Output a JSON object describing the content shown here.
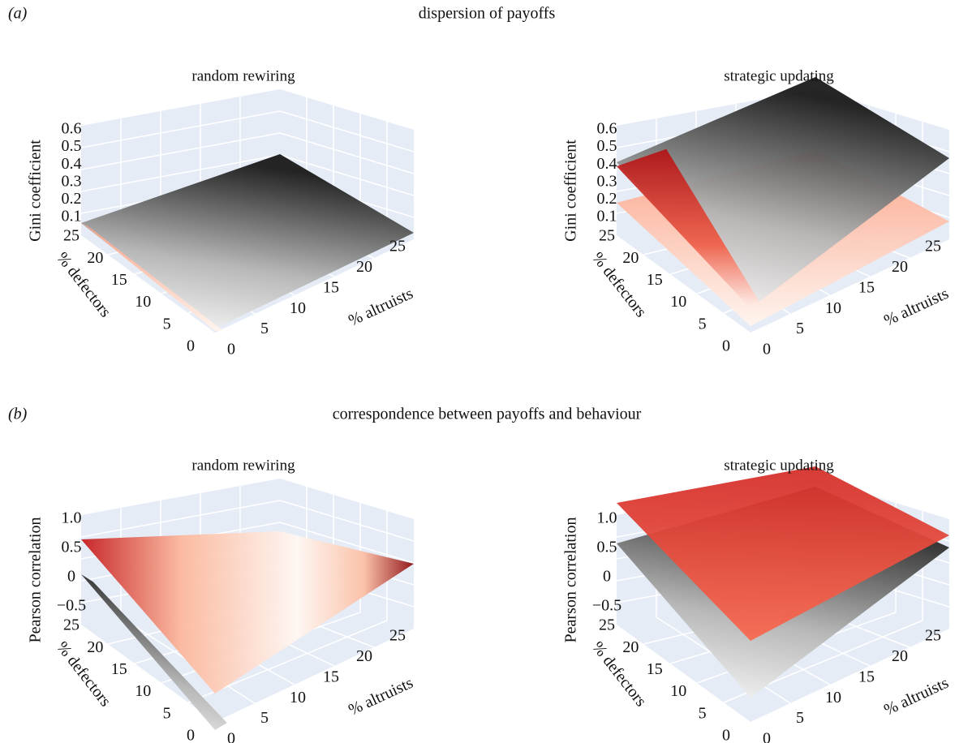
{
  "figure": {
    "panels": [
      {
        "label": "(a)",
        "title": "dispersion of payoffs",
        "plots": [
          {
            "title": "random rewiring",
            "z_label": "Gini coefficient",
            "z_ticks": [
              "0.6",
              "0.5",
              "0.4",
              "0.3",
              "0.2",
              "0.1"
            ],
            "y_label": "% defectors",
            "y_ticks": [
              "25",
              "20",
              "15",
              "10",
              "5",
              "0"
            ],
            "x_label": "% altruists",
            "x_ticks": [
              "0",
              "5",
              "10",
              "15",
              "20",
              "25"
            ]
          },
          {
            "title": "strategic updating",
            "z_label": "Gini coefficient",
            "z_ticks": [
              "0.6",
              "0.5",
              "0.4",
              "0.3",
              "0.2",
              "0.1"
            ],
            "y_label": "% defectors",
            "y_ticks": [
              "25",
              "20",
              "15",
              "10",
              "5",
              "0"
            ],
            "x_label": "% altruists",
            "x_ticks": [
              "0",
              "5",
              "10",
              "15",
              "20",
              "25"
            ]
          }
        ]
      },
      {
        "label": "(b)",
        "title": "correspondence between payoffs and behaviour",
        "plots": [
          {
            "title": "random rewiring",
            "z_label": "Pearson correlation",
            "z_ticks": [
              "1.0",
              "0.5",
              "0",
              "−0.5"
            ],
            "y_label": "% defectors",
            "y_ticks": [
              "25",
              "20",
              "15",
              "10",
              "5",
              "0"
            ],
            "x_label": "% altruists",
            "x_ticks": [
              "0",
              "5",
              "10",
              "15",
              "20",
              "25"
            ]
          },
          {
            "title": "strategic updating",
            "z_label": "Pearson correlation",
            "z_ticks": [
              "1.0",
              "0.5",
              "0",
              "−0.5"
            ],
            "y_label": "% defectors",
            "y_ticks": [
              "25",
              "20",
              "15",
              "10",
              "5",
              "0"
            ],
            "x_label": "% altruists",
            "x_ticks": [
              "0",
              "5",
              "10",
              "15",
              "20",
              "25"
            ]
          }
        ]
      }
    ]
  }
}
